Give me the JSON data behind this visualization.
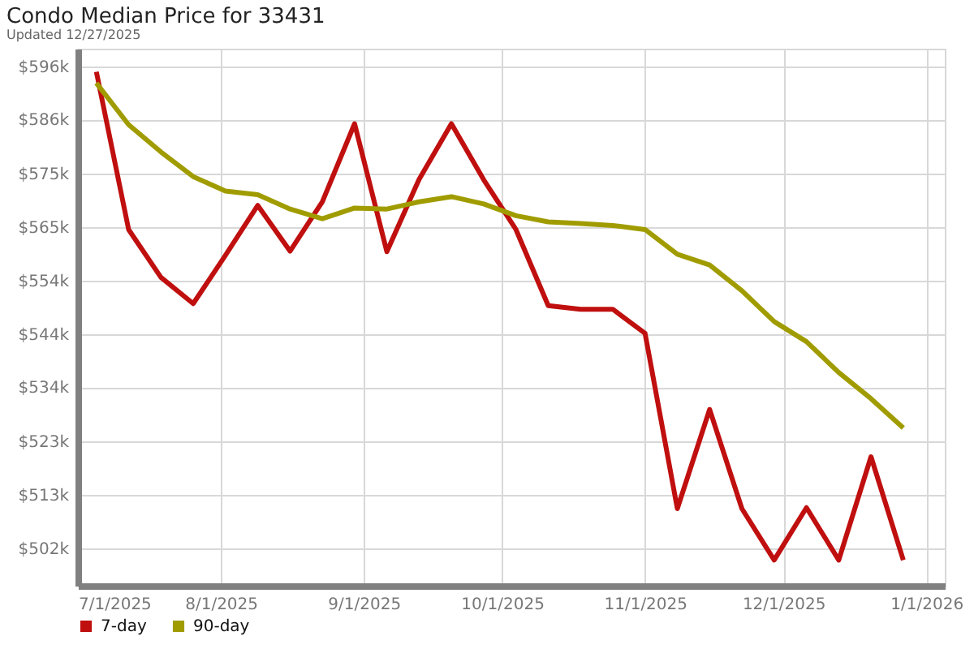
{
  "chart_data": {
    "type": "line",
    "title": "Condo Median Price for 33431",
    "subtitle": "Updated 12/27/2025",
    "x": [
      "2025-07-05",
      "2025-07-12",
      "2025-07-19",
      "2025-07-26",
      "2025-08-02",
      "2025-08-09",
      "2025-08-16",
      "2025-08-23",
      "2025-08-30",
      "2025-09-06",
      "2025-09-13",
      "2025-09-20",
      "2025-09-27",
      "2025-10-04",
      "2025-10-11",
      "2025-10-18",
      "2025-10-25",
      "2025-11-01",
      "2025-11-08",
      "2025-11-15",
      "2025-11-22",
      "2025-11-29",
      "2025-12-06",
      "2025-12-13",
      "2025-12-20",
      "2025-12-27"
    ],
    "series": [
      {
        "name": "7-day",
        "color": "#c00f0f",
        "values": [
          595.0,
          564.3,
          555.0,
          549.9,
          559.3,
          569.0,
          560.1,
          569.7,
          584.9,
          560.0,
          574.1,
          584.9,
          574.0,
          564.3,
          549.5,
          548.8,
          548.8,
          544.1,
          510.0,
          529.3,
          510.0,
          500.0,
          510.2,
          500.0,
          520.1,
          500.0
        ]
      },
      {
        "name": "90-day",
        "color": "#a09c00",
        "values": [
          592.8,
          584.7,
          579.4,
          574.6,
          571.8,
          571.1,
          568.3,
          566.4,
          568.5,
          568.3,
          569.7,
          570.7,
          569.3,
          567.0,
          565.8,
          565.5,
          565.1,
          564.3,
          559.5,
          557.4,
          552.4,
          546.4,
          542.5,
          536.5,
          531.4,
          525.7
        ]
      }
    ],
    "xlim": [
      "2025-07-01",
      "2026-01-05"
    ],
    "xticks": [
      {
        "value": "2025-07-01",
        "label": "7/1/2025"
      },
      {
        "value": "2025-08-01",
        "label": "8/1/2025"
      },
      {
        "value": "2025-09-01",
        "label": "9/1/2025"
      },
      {
        "value": "2025-10-01",
        "label": "10/1/2025"
      },
      {
        "value": "2025-11-01",
        "label": "11/1/2025"
      },
      {
        "value": "2025-12-01",
        "label": "12/1/2025"
      },
      {
        "value": "2026-01-01",
        "label": "1/1/2026"
      }
    ],
    "ylim": [
      495,
      599.5
    ],
    "yticks": [
      {
        "value": 502.3,
        "label": "$502k"
      },
      {
        "value": 512.7,
        "label": "$513k"
      },
      {
        "value": 523.1,
        "label": "$523k"
      },
      {
        "value": 533.6,
        "label": "$534k"
      },
      {
        "value": 544.0,
        "label": "$544k"
      },
      {
        "value": 554.4,
        "label": "$554k"
      },
      {
        "value": 564.8,
        "label": "$565k"
      },
      {
        "value": 575.2,
        "label": "$575k"
      },
      {
        "value": 585.7,
        "label": "$586k"
      },
      {
        "value": 596.1,
        "label": "$596k"
      }
    ],
    "grid": true,
    "legend": "bottom left"
  }
}
